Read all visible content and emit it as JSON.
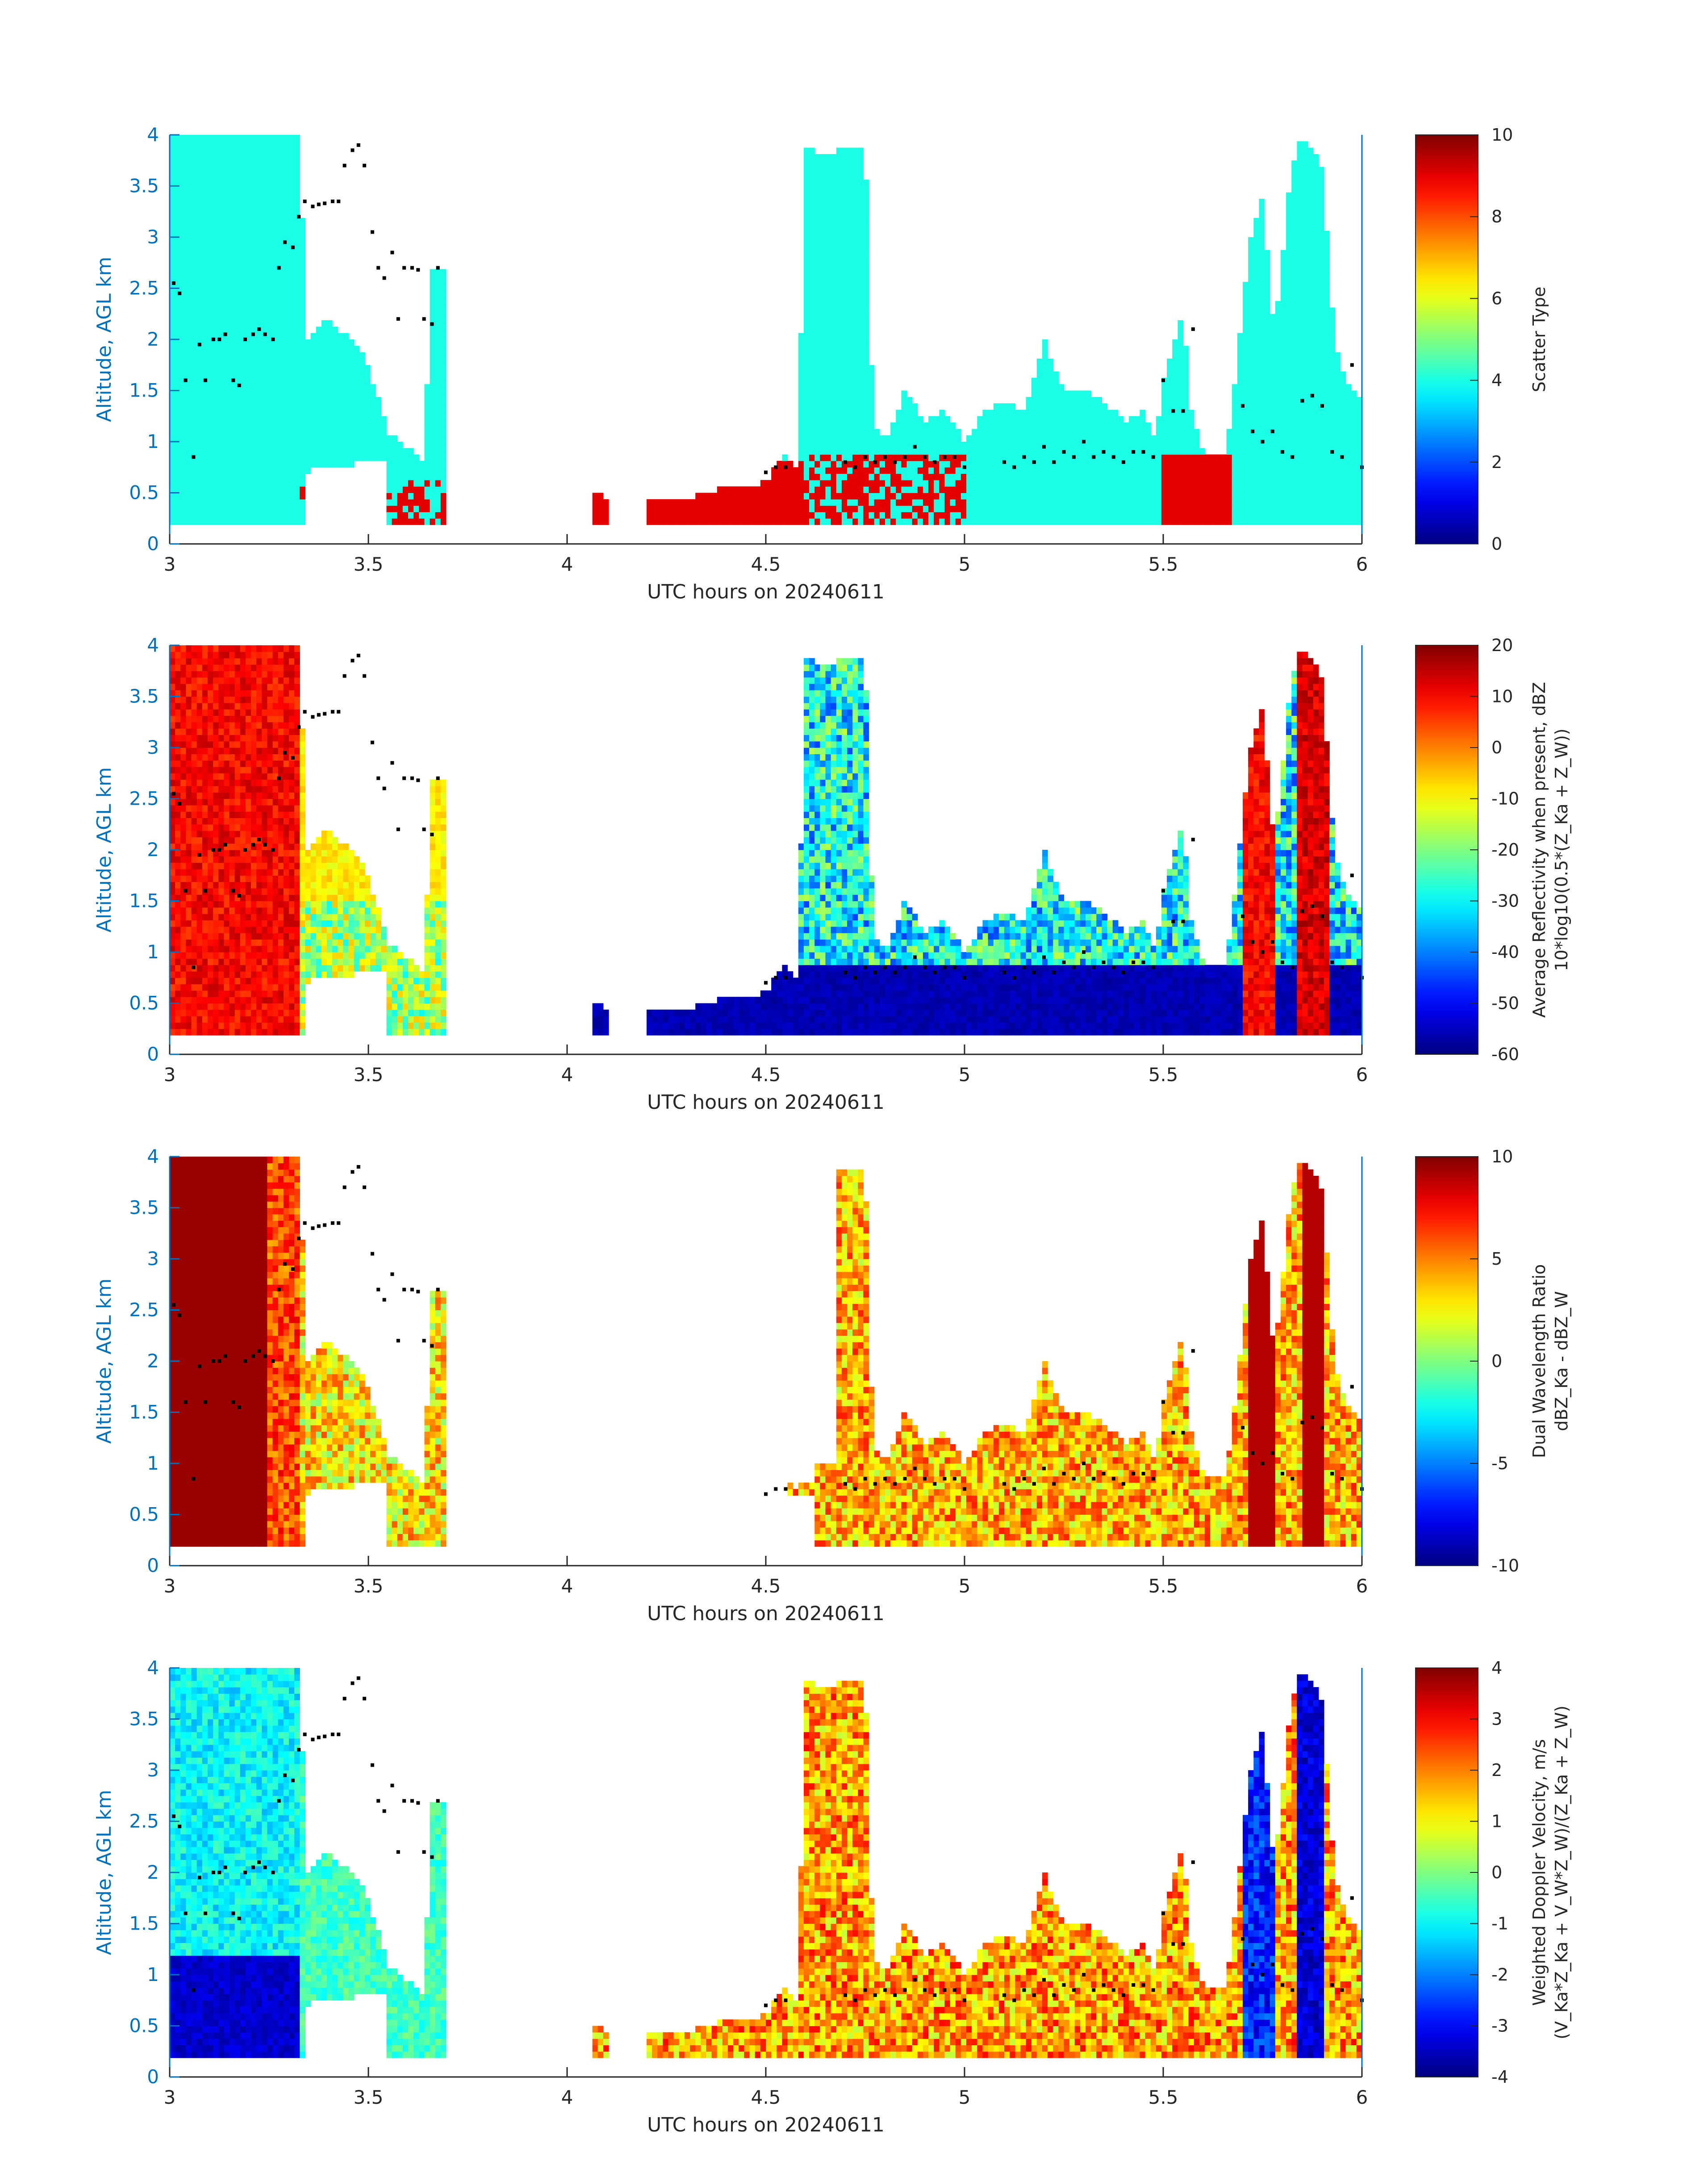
{
  "colormap": "jet",
  "colors": {
    "axis": "#262626",
    "yaxis": "#0072BD",
    "right_axis": "#0072BD",
    "dots": "#000000"
  },
  "chart_data": [
    {
      "type": "heatmap",
      "xlabel": "UTC hours on 20240611",
      "ylabel": "Altitude, AGL km",
      "xlim": [
        3,
        6
      ],
      "ylim": [
        0,
        4
      ],
      "xticks": [
        "3",
        "3.5",
        "4",
        "4.5",
        "5",
        "5.5",
        "6"
      ],
      "yticks": [
        "0",
        "0.5",
        "1",
        "1.5",
        "2",
        "2.5",
        "3",
        "3.5",
        "4"
      ],
      "colorbar": {
        "label": [
          "Scatter Type"
        ],
        "clim": [
          0,
          10
        ],
        "ticks": [
          "0",
          "2",
          "4",
          "6",
          "8",
          "10"
        ]
      }
    },
    {
      "type": "heatmap",
      "xlabel": "UTC hours on 20240611",
      "ylabel": "Altitude, AGL km",
      "xlim": [
        3,
        6
      ],
      "ylim": [
        0,
        4
      ],
      "xticks": [
        "3",
        "3.5",
        "4",
        "4.5",
        "5",
        "5.5",
        "6"
      ],
      "yticks": [
        "0",
        "0.5",
        "1",
        "1.5",
        "2",
        "2.5",
        "3",
        "3.5",
        "4"
      ],
      "colorbar": {
        "label": [
          "Average Reflectivity when present, dBZ",
          "10*log10(0.5*(Z_Ka + Z_W))"
        ],
        "clim": [
          -60,
          20
        ],
        "ticks": [
          "-60",
          "-50",
          "-40",
          "-30",
          "-20",
          "-10",
          "0",
          "10",
          "20"
        ]
      }
    },
    {
      "type": "heatmap",
      "xlabel": "UTC hours on 20240611",
      "ylabel": "Altitude, AGL km",
      "xlim": [
        3,
        6
      ],
      "ylim": [
        0,
        4
      ],
      "xticks": [
        "3",
        "3.5",
        "4",
        "4.5",
        "5",
        "5.5",
        "6"
      ],
      "yticks": [
        "0",
        "0.5",
        "1",
        "1.5",
        "2",
        "2.5",
        "3",
        "3.5",
        "4"
      ],
      "colorbar": {
        "label": [
          "Dual Wavelength Ratio",
          "dBZ_Ka - dBZ_W"
        ],
        "clim": [
          -10,
          10
        ],
        "ticks": [
          "-10",
          "-5",
          "0",
          "5",
          "10"
        ]
      }
    },
    {
      "type": "heatmap",
      "xlabel": "UTC hours on 20240611",
      "ylabel": "Altitude, AGL km",
      "xlim": [
        3,
        6
      ],
      "ylim": [
        0,
        4
      ],
      "xticks": [
        "3",
        "3.5",
        "4",
        "4.5",
        "5",
        "5.5",
        "6"
      ],
      "yticks": [
        "0",
        "0.5",
        "1",
        "1.5",
        "2",
        "2.5",
        "3",
        "3.5",
        "4"
      ],
      "colorbar": {
        "label": [
          "Weighted Doppler Velocity, m/s",
          "(V_Ka*Z_Ka + V_W*Z_W)/(Z_Ka + Z_W)"
        ],
        "clim": [
          -4,
          4
        ],
        "ticks": [
          "-4",
          "-3",
          "-2",
          "-1",
          "0",
          "1",
          "2",
          "3",
          "4"
        ]
      }
    }
  ],
  "cloud_top_dots": {
    "x": [
      3.01,
      3.025,
      3.04,
      3.06,
      3.075,
      3.09,
      3.11,
      3.125,
      3.14,
      3.16,
      3.175,
      3.19,
      3.21,
      3.225,
      3.24,
      3.26,
      3.275,
      3.29,
      3.31,
      3.325,
      3.34,
      3.36,
      3.375,
      3.39,
      3.41,
      3.425,
      3.44,
      3.46,
      3.475,
      3.49,
      3.51,
      3.525,
      3.54,
      3.56,
      3.575,
      3.59,
      3.61,
      3.625,
      3.64,
      3.66,
      3.675,
      4.5,
      4.525,
      4.55,
      4.7,
      4.725,
      4.75,
      4.775,
      4.8,
      4.825,
      4.85,
      4.875,
      4.9,
      4.925,
      4.95,
      4.975,
      5.0,
      5.1,
      5.125,
      5.15,
      5.175,
      5.2,
      5.225,
      5.25,
      5.275,
      5.3,
      5.325,
      5.35,
      5.375,
      5.4,
      5.425,
      5.45,
      5.475,
      5.5,
      5.525,
      5.55,
      5.575,
      5.7,
      5.725,
      5.75,
      5.775,
      5.8,
      5.825,
      5.85,
      5.875,
      5.9,
      5.925,
      5.95,
      5.975,
      6.0
    ],
    "y": [
      2.55,
      2.45,
      1.6,
      0.85,
      1.95,
      1.6,
      2.0,
      2.0,
      2.05,
      1.6,
      1.55,
      2.0,
      2.05,
      2.1,
      2.05,
      2.0,
      2.7,
      2.95,
      2.9,
      3.2,
      3.35,
      3.3,
      3.32,
      3.33,
      3.35,
      3.35,
      3.7,
      3.85,
      3.9,
      3.7,
      3.05,
      2.7,
      2.6,
      2.85,
      2.2,
      2.7,
      2.7,
      2.68,
      2.2,
      2.15,
      2.7,
      0.7,
      0.75,
      0.75,
      0.8,
      0.75,
      0.85,
      0.8,
      0.85,
      0.8,
      0.85,
      0.95,
      0.85,
      0.8,
      0.85,
      0.85,
      0.75,
      0.8,
      0.75,
      0.85,
      0.8,
      0.95,
      0.8,
      0.9,
      0.85,
      1.0,
      0.85,
      0.9,
      0.85,
      0.8,
      0.9,
      0.9,
      0.85,
      1.6,
      1.3,
      1.3,
      2.1,
      1.35,
      1.1,
      1.0,
      1.1,
      0.9,
      0.85,
      1.4,
      1.45,
      1.35,
      0.9,
      0.85,
      1.75,
      0.75
    ]
  }
}
